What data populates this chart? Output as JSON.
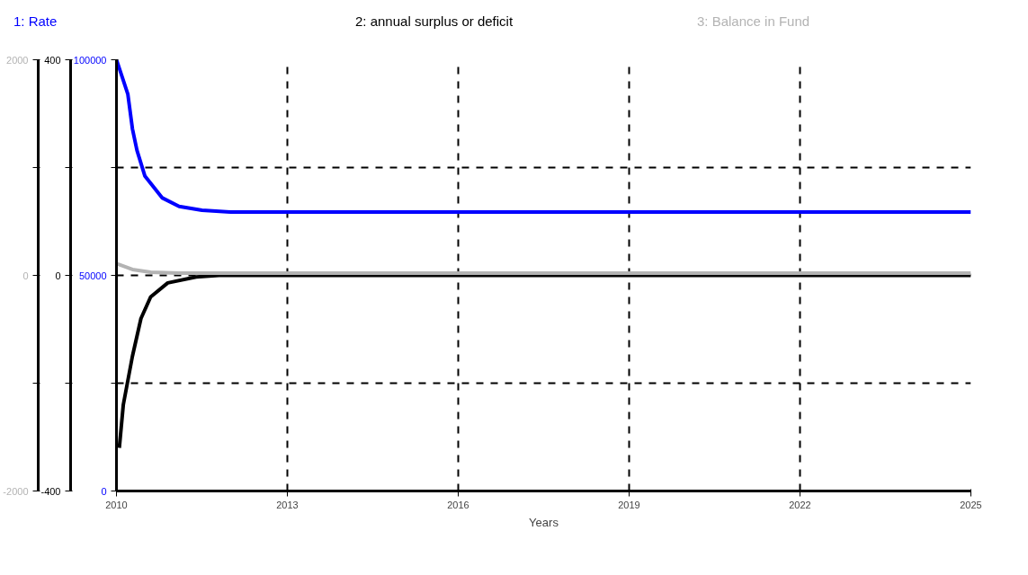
{
  "chart_data": {
    "type": "line",
    "xlabel": "Years",
    "grid": true,
    "line_style": "solid",
    "marker": "none",
    "xlim": [
      2010,
      2025
    ],
    "xticks": [
      2010,
      2013,
      2016,
      2019,
      2022,
      2025
    ],
    "ylim": [
      0,
      100000
    ],
    "yticks": [
      0,
      {
        "value": 25000,
        "label": null
      },
      50000,
      {
        "value": 75000,
        "label": null
      },
      100000
    ],
    "y2lim": [
      -400,
      400
    ],
    "y2ticks": [
      -400,
      {
        "value": -200,
        "label": null
      },
      0,
      {
        "value": 200,
        "label": null
      },
      400
    ],
    "y3lim": [
      -2000,
      2000
    ],
    "y3ticks": [
      -2000,
      {
        "value": -1000,
        "label": null
      },
      0,
      {
        "value": 1000,
        "label": null
      },
      2000
    ],
    "series": [
      {
        "name": "1: Rate",
        "color": "#0000ff",
        "x": [
          2010,
          2010.2,
          2010.28,
          2010.36,
          2010.5,
          2010.8,
          2011.1,
          2011.5,
          2012,
          2025
        ],
        "values": [
          100000,
          92000,
          84000,
          79000,
          73000,
          68000,
          66000,
          65100,
          64700,
          64700
        ]
      },
      {
        "name": "2: annual surplus or deficit",
        "color": "#000000",
        "axis": "y2",
        "x": [
          2010.05,
          2010.12,
          2010.28,
          2010.43,
          2010.6,
          2010.9,
          2011.4,
          2011.8,
          2025
        ],
        "values": [
          -320,
          -240,
          -150,
          -80,
          -40,
          -14,
          -3,
          0,
          0
        ]
      },
      {
        "name": "3: Balance in Fund",
        "color": "#b3b3b3",
        "axis": "y3",
        "x": [
          2010,
          2010.28,
          2010.6,
          2011.1,
          2011.7,
          2025
        ],
        "values": [
          110,
          55,
          30,
          20,
          20,
          20
        ]
      }
    ]
  }
}
